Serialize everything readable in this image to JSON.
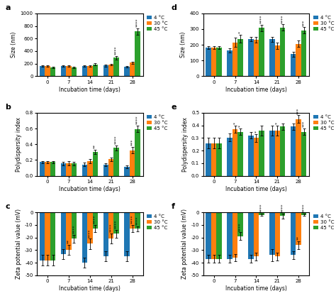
{
  "chart_data": [
    {
      "type": "bar",
      "title": "a",
      "xlabel": "Incubation time (days)",
      "ylabel": "Size (nm)",
      "categories": [
        "0",
        "7",
        "14",
        "21",
        "28"
      ],
      "ylim": [
        0,
        1000
      ],
      "yticks": [
        0,
        200,
        400,
        600,
        800,
        1000
      ],
      "legend": "right",
      "series": [
        {
          "name": "4 °C",
          "values": [
            160,
            160,
            160,
            170,
            155
          ],
          "errors": [
            10,
            10,
            10,
            15,
            10
          ],
          "annotations": [
            null,
            null,
            null,
            null,
            null
          ]
        },
        {
          "name": "30 °C",
          "values": [
            160,
            160,
            160,
            185,
            215
          ],
          "errors": [
            10,
            10,
            10,
            15,
            20
          ],
          "annotations": [
            null,
            null,
            null,
            null,
            null
          ]
        },
        {
          "name": "45 °C",
          "values": [
            145,
            145,
            190,
            295,
            710
          ],
          "errors": [
            10,
            10,
            20,
            30,
            50
          ],
          "annotations": [
            null,
            null,
            null,
            "****",
            "****"
          ]
        }
      ]
    },
    {
      "type": "bar",
      "title": "b",
      "xlabel": "Incubation time (days)",
      "ylabel": "Polydispersity index",
      "categories": [
        "0",
        "7",
        "14",
        "21",
        "28"
      ],
      "ylim": [
        0.0,
        0.8
      ],
      "yticks": [
        0.0,
        0.2,
        0.4,
        0.6,
        0.8
      ],
      "legend": "right",
      "series": [
        {
          "name": "4 °C",
          "values": [
            0.175,
            0.155,
            0.145,
            0.14,
            0.115
          ],
          "errors": [
            0.015,
            0.025,
            0.02,
            0.02,
            0.015
          ],
          "annotations": [
            null,
            null,
            null,
            null,
            null
          ]
        },
        {
          "name": "30 °C",
          "values": [
            0.175,
            0.16,
            0.185,
            0.21,
            0.325
          ],
          "errors": [
            0.015,
            0.03,
            0.025,
            0.025,
            0.04
          ],
          "annotations": [
            null,
            null,
            null,
            null,
            "***"
          ]
        },
        {
          "name": "45 °C",
          "values": [
            0.175,
            0.155,
            0.305,
            0.355,
            0.595
          ],
          "errors": [
            0.015,
            0.02,
            0.025,
            0.03,
            0.04
          ],
          "annotations": [
            null,
            null,
            "**",
            "****",
            "****"
          ]
        }
      ]
    },
    {
      "type": "bar",
      "title": "c",
      "xlabel": "Incubation time (days)",
      "ylabel": "Zeta potential value (mV)",
      "categories": [
        "0",
        "7",
        "14",
        "21",
        "28"
      ],
      "ylim": [
        -50,
        0
      ],
      "yticks": [
        -50,
        -40,
        -30,
        -20,
        -10,
        0
      ],
      "legend": "right",
      "series": [
        {
          "name": "4 °C",
          "values": [
            -38,
            -33,
            -40,
            -35,
            -35
          ],
          "errors": [
            4,
            4,
            4,
            4,
            4
          ],
          "annotations": [
            null,
            null,
            null,
            null,
            null
          ]
        },
        {
          "name": "30 °C",
          "values": [
            -38,
            -30,
            -25,
            -21,
            -13
          ],
          "errors": [
            4,
            4,
            4,
            4,
            3
          ],
          "annotations": [
            null,
            "**",
            "****",
            "****",
            "****"
          ]
        },
        {
          "name": "45 °C",
          "values": [
            -38,
            -21,
            -13,
            -17,
            -13
          ],
          "errors": [
            4,
            3,
            3,
            3,
            2
          ],
          "annotations": [
            null,
            "****",
            "****",
            "****",
            "****"
          ]
        }
      ]
    },
    {
      "type": "bar",
      "title": "d",
      "xlabel": "Incubation time (days)",
      "ylabel": "Size (nm)",
      "categories": [
        "0",
        "7",
        "14",
        "21",
        "28"
      ],
      "ylim": [
        0,
        400
      ],
      "yticks": [
        0,
        100,
        200,
        300,
        400
      ],
      "legend": "right",
      "series": [
        {
          "name": "4 °C",
          "values": [
            182,
            165,
            237,
            235,
            140
          ],
          "errors": [
            8,
            15,
            15,
            15,
            15
          ],
          "annotations": [
            null,
            null,
            null,
            null,
            null
          ]
        },
        {
          "name": "30 °C",
          "values": [
            182,
            215,
            232,
            195,
            207
          ],
          "errors": [
            8,
            30,
            20,
            20,
            20
          ],
          "annotations": [
            null,
            null,
            null,
            null,
            null
          ]
        },
        {
          "name": "45 °C",
          "values": [
            182,
            238,
            308,
            310,
            292
          ],
          "errors": [
            8,
            25,
            20,
            20,
            20
          ],
          "annotations": [
            null,
            "*",
            "****",
            "****",
            "***"
          ]
        }
      ]
    },
    {
      "type": "bar",
      "title": "e",
      "xlabel": "Incubation time (days)",
      "ylabel": "Polydispersity index",
      "categories": [
        "0",
        "7",
        "14",
        "21",
        "28"
      ],
      "ylim": [
        0.0,
        0.5
      ],
      "yticks": [
        0.0,
        0.1,
        0.2,
        0.3,
        0.4,
        0.5
      ],
      "legend": "right",
      "series": [
        {
          "name": "4 °C",
          "values": [
            0.26,
            0.305,
            0.32,
            0.36,
            0.39
          ],
          "errors": [
            0.04,
            0.03,
            0.025,
            0.04,
            0.025
          ],
          "annotations": [
            null,
            null,
            null,
            null,
            null
          ]
        },
        {
          "name": "30 °C",
          "values": [
            0.26,
            0.37,
            0.3,
            0.36,
            0.45
          ],
          "errors": [
            0.04,
            0.03,
            0.03,
            0.04,
            0.03
          ],
          "annotations": [
            null,
            "*",
            "*",
            "*",
            "***"
          ]
        },
        {
          "name": "45 °C",
          "values": [
            0.26,
            0.35,
            0.36,
            0.39,
            0.35
          ],
          "errors": [
            0.04,
            0.025,
            0.04,
            0.025,
            0.025
          ],
          "annotations": [
            null,
            "*",
            null,
            null,
            "***"
          ]
        }
      ]
    },
    {
      "type": "bar",
      "title": "f",
      "xlabel": "Incubation time (days)",
      "ylabel": "Zeta potential value (mV)",
      "categories": [
        "0",
        "7",
        "14",
        "21",
        "28"
      ],
      "ylim": [
        -50,
        0
      ],
      "yticks": [
        -50,
        -40,
        -30,
        -20,
        -10,
        0
      ],
      "legend": "right",
      "series": [
        {
          "name": "4 °C",
          "values": [
            -37,
            -37,
            -37,
            -34,
            -34
          ],
          "errors": [
            3,
            3,
            3,
            5,
            3
          ],
          "annotations": [
            null,
            null,
            null,
            null,
            null
          ]
        },
        {
          "name": "30 °C",
          "values": [
            -37,
            -36,
            -35,
            -35,
            -26
          ],
          "errors": [
            3,
            3,
            3,
            3,
            3
          ],
          "annotations": [
            null,
            null,
            null,
            null,
            "**"
          ]
        },
        {
          "name": "45 °C",
          "values": [
            -37,
            -19,
            -2,
            -3,
            -2
          ],
          "errors": [
            3,
            3,
            1,
            2,
            1
          ],
          "annotations": [
            null,
            "****",
            "****",
            "****",
            "****"
          ]
        }
      ]
    }
  ]
}
